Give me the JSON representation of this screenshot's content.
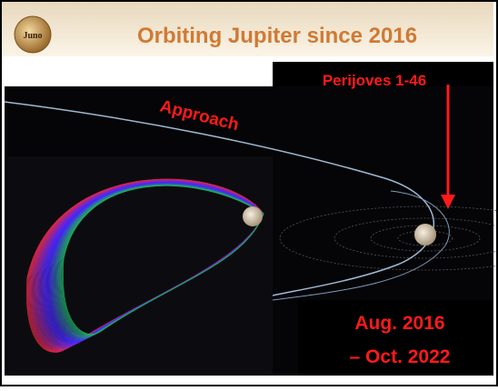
{
  "logo": "Juno",
  "title": "Orbiting Jupiter since 2016",
  "labels": {
    "perijoves": "Perijoves 1-46",
    "approach": "Approach",
    "start": "Aug. 2016",
    "end": "– Oct. 2022"
  }
}
